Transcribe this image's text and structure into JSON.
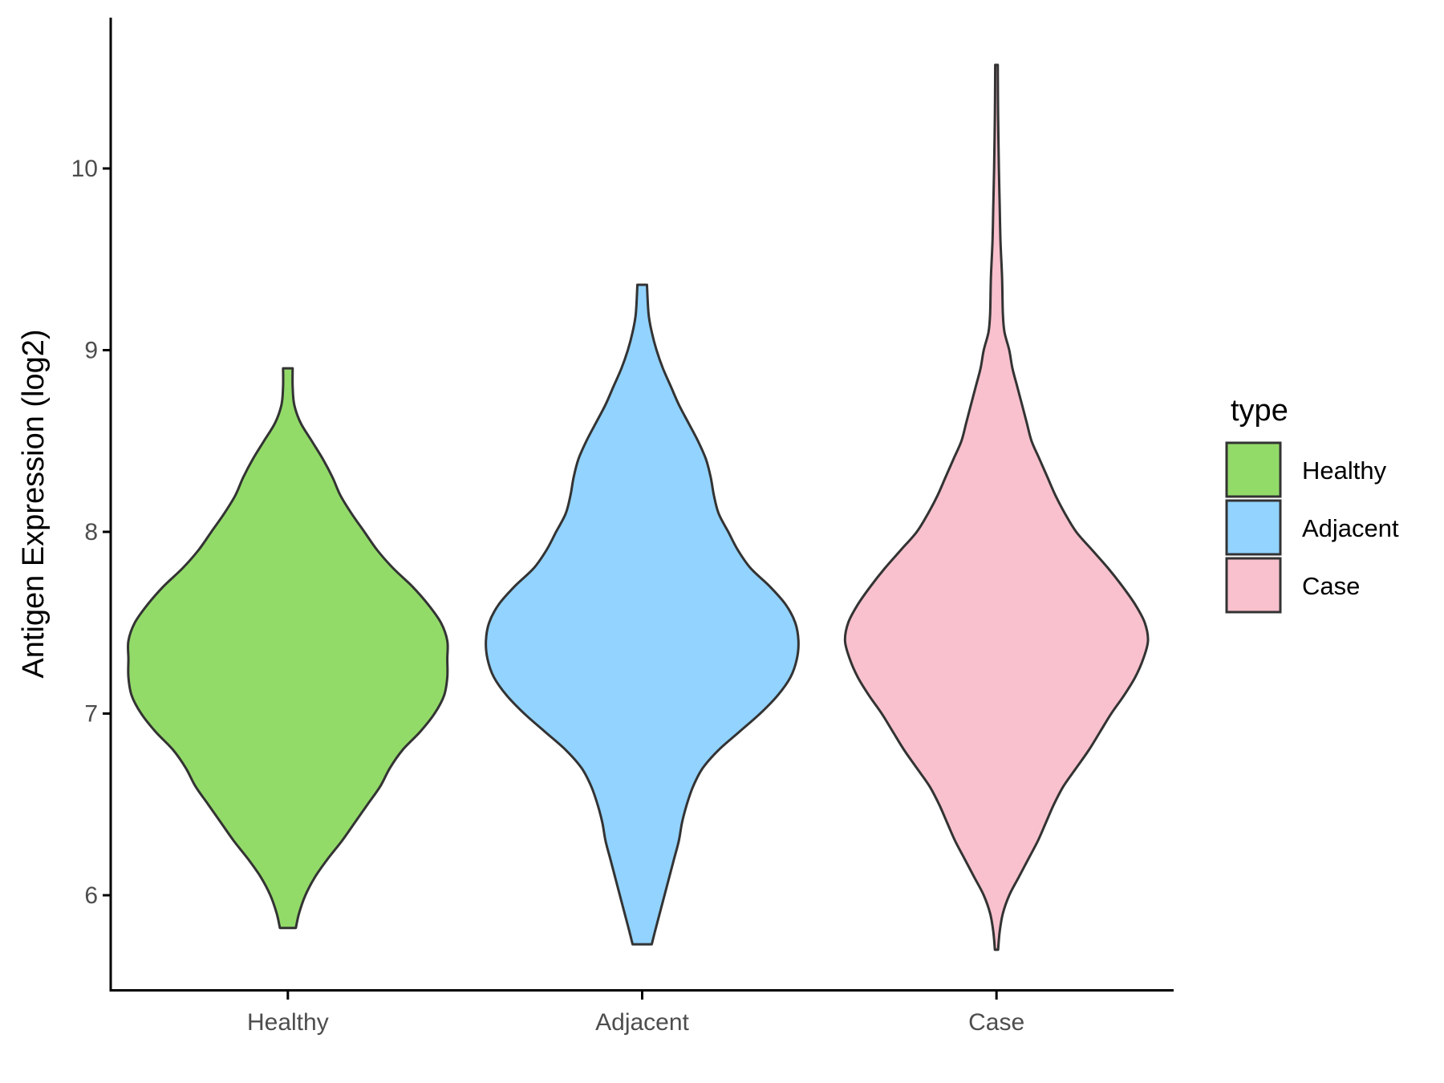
{
  "chart_data": {
    "type": "violin",
    "title": "",
    "xlabel": "",
    "ylabel": "Antigen Expression (log2)",
    "ylim": [
      5.47,
      10.83
    ],
    "yticks": [
      6,
      7,
      8,
      9,
      10
    ],
    "categories": [
      "Healthy",
      "Adjacent",
      "Case"
    ],
    "grid": false,
    "legend": {
      "title": "type",
      "placement": "right",
      "entries": [
        "Healthy",
        "Adjacent",
        "Case"
      ]
    },
    "series": [
      {
        "name": "Healthy",
        "color": "#93DB69",
        "min": 5.82,
        "max": 8.9,
        "density": [
          [
            5.82,
            0.05
          ],
          [
            5.9,
            0.07
          ],
          [
            6.0,
            0.11
          ],
          [
            6.1,
            0.17
          ],
          [
            6.2,
            0.25
          ],
          [
            6.3,
            0.34
          ],
          [
            6.4,
            0.42
          ],
          [
            6.5,
            0.5
          ],
          [
            6.6,
            0.58
          ],
          [
            6.7,
            0.64
          ],
          [
            6.8,
            0.72
          ],
          [
            6.9,
            0.83
          ],
          [
            7.0,
            0.92
          ],
          [
            7.1,
            0.98
          ],
          [
            7.2,
            1.0
          ],
          [
            7.3,
            1.0
          ],
          [
            7.4,
            1.0
          ],
          [
            7.5,
            0.96
          ],
          [
            7.6,
            0.88
          ],
          [
            7.7,
            0.78
          ],
          [
            7.8,
            0.66
          ],
          [
            7.9,
            0.56
          ],
          [
            8.0,
            0.48
          ],
          [
            8.1,
            0.4
          ],
          [
            8.2,
            0.33
          ],
          [
            8.3,
            0.28
          ],
          [
            8.4,
            0.22
          ],
          [
            8.5,
            0.15
          ],
          [
            8.6,
            0.08
          ],
          [
            8.7,
            0.04
          ],
          [
            8.8,
            0.03
          ],
          [
            8.9,
            0.03
          ]
        ]
      },
      {
        "name": "Adjacent",
        "color": "#92D3FF",
        "min": 5.73,
        "max": 9.36,
        "density": [
          [
            5.73,
            0.06
          ],
          [
            5.8,
            0.08
          ],
          [
            5.9,
            0.11
          ],
          [
            6.0,
            0.14
          ],
          [
            6.1,
            0.17
          ],
          [
            6.2,
            0.2
          ],
          [
            6.3,
            0.23
          ],
          [
            6.4,
            0.25
          ],
          [
            6.5,
            0.28
          ],
          [
            6.6,
            0.32
          ],
          [
            6.7,
            0.38
          ],
          [
            6.8,
            0.48
          ],
          [
            6.9,
            0.61
          ],
          [
            7.0,
            0.74
          ],
          [
            7.1,
            0.85
          ],
          [
            7.2,
            0.93
          ],
          [
            7.3,
            0.97
          ],
          [
            7.4,
            0.98
          ],
          [
            7.5,
            0.96
          ],
          [
            7.6,
            0.9
          ],
          [
            7.7,
            0.8
          ],
          [
            7.8,
            0.68
          ],
          [
            7.9,
            0.6
          ],
          [
            8.0,
            0.54
          ],
          [
            8.1,
            0.48
          ],
          [
            8.2,
            0.45
          ],
          [
            8.3,
            0.43
          ],
          [
            8.4,
            0.4
          ],
          [
            8.5,
            0.35
          ],
          [
            8.6,
            0.29
          ],
          [
            8.7,
            0.23
          ],
          [
            8.8,
            0.18
          ],
          [
            8.9,
            0.13
          ],
          [
            9.0,
            0.09
          ],
          [
            9.1,
            0.06
          ],
          [
            9.2,
            0.04
          ],
          [
            9.36,
            0.03
          ]
        ]
      },
      {
        "name": "Case",
        "color": "#F8C1CD",
        "min": 5.7,
        "max": 10.57,
        "density": [
          [
            5.7,
            0.01
          ],
          [
            5.8,
            0.02
          ],
          [
            5.9,
            0.04
          ],
          [
            6.0,
            0.08
          ],
          [
            6.1,
            0.14
          ],
          [
            6.2,
            0.2
          ],
          [
            6.3,
            0.26
          ],
          [
            6.4,
            0.31
          ],
          [
            6.5,
            0.36
          ],
          [
            6.6,
            0.42
          ],
          [
            6.7,
            0.5
          ],
          [
            6.8,
            0.58
          ],
          [
            6.9,
            0.65
          ],
          [
            7.0,
            0.72
          ],
          [
            7.1,
            0.8
          ],
          [
            7.2,
            0.87
          ],
          [
            7.3,
            0.92
          ],
          [
            7.4,
            0.95
          ],
          [
            7.5,
            0.93
          ],
          [
            7.6,
            0.87
          ],
          [
            7.7,
            0.79
          ],
          [
            7.8,
            0.7
          ],
          [
            7.9,
            0.6
          ],
          [
            8.0,
            0.5
          ],
          [
            8.1,
            0.43
          ],
          [
            8.2,
            0.37
          ],
          [
            8.3,
            0.32
          ],
          [
            8.4,
            0.27
          ],
          [
            8.5,
            0.22
          ],
          [
            8.6,
            0.19
          ],
          [
            8.7,
            0.16
          ],
          [
            8.8,
            0.13
          ],
          [
            8.9,
            0.1
          ],
          [
            9.0,
            0.08
          ],
          [
            9.1,
            0.05
          ],
          [
            9.2,
            0.04
          ],
          [
            9.4,
            0.035
          ],
          [
            9.6,
            0.025
          ],
          [
            9.8,
            0.02
          ],
          [
            10.0,
            0.015
          ],
          [
            10.3,
            0.01
          ],
          [
            10.57,
            0.008
          ]
        ]
      }
    ]
  }
}
